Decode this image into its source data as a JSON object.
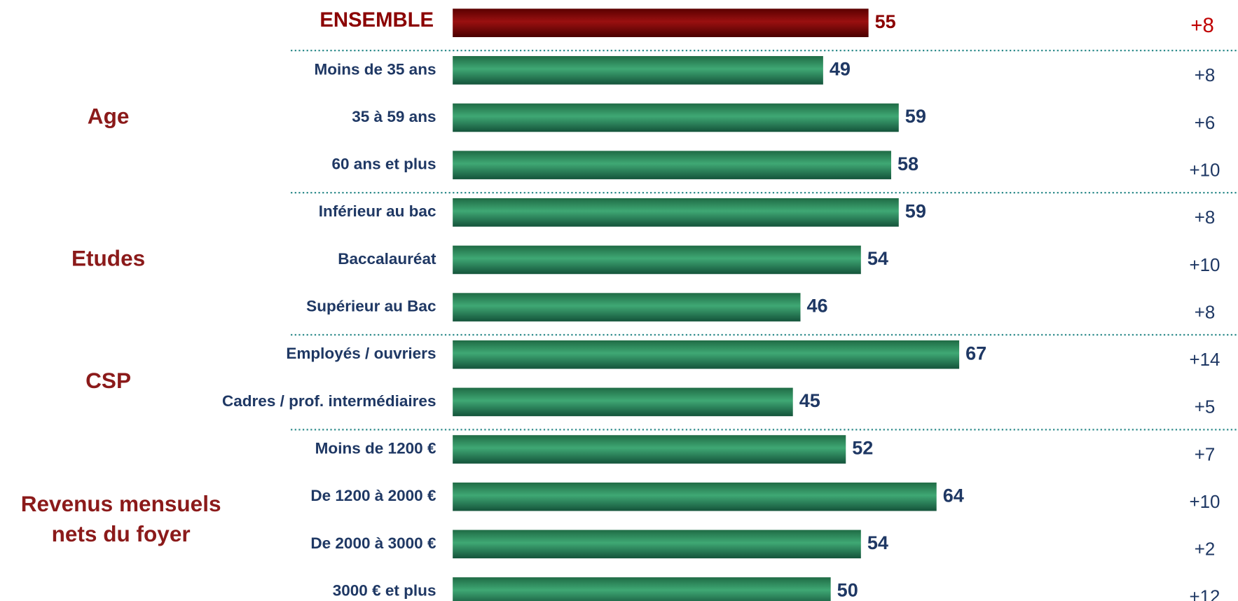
{
  "chart_data": {
    "type": "bar",
    "ensemble": {
      "label": "ENSEMBLE",
      "value": 55,
      "change": "+8",
      "color": "#7a0000"
    },
    "color": "#2e8b57",
    "groups": [
      {
        "label": [
          "Age"
        ],
        "categories": [
          "Moins de 35 ans",
          "35 à 59 ans",
          "60 ans et plus"
        ],
        "values": [
          49,
          59,
          58
        ],
        "changes": [
          "+8",
          "+6",
          "+10"
        ]
      },
      {
        "label": [
          "Etudes"
        ],
        "categories": [
          "Inférieur au bac",
          "Baccalauréat",
          "Supérieur au Bac"
        ],
        "values": [
          59,
          54,
          46
        ],
        "changes": [
          "+8",
          "+10",
          "+8"
        ]
      },
      {
        "label": [
          "CSP"
        ],
        "categories": [
          "Employés / ouvriers",
          "Cadres / prof. intermédiaires"
        ],
        "values": [
          67,
          45
        ],
        "changes": [
          "+14",
          "+5"
        ]
      },
      {
        "label": [
          "Revenus mensuels",
          "nets du foyer"
        ],
        "categories": [
          "Moins de 1200 €",
          "De 1200 à 2000 €",
          "De 2000 à 3000 €",
          "3000 € et plus"
        ],
        "values": [
          52,
          64,
          54,
          50
        ],
        "changes": [
          "+7",
          "+10",
          "+2",
          "+12"
        ]
      }
    ]
  }
}
